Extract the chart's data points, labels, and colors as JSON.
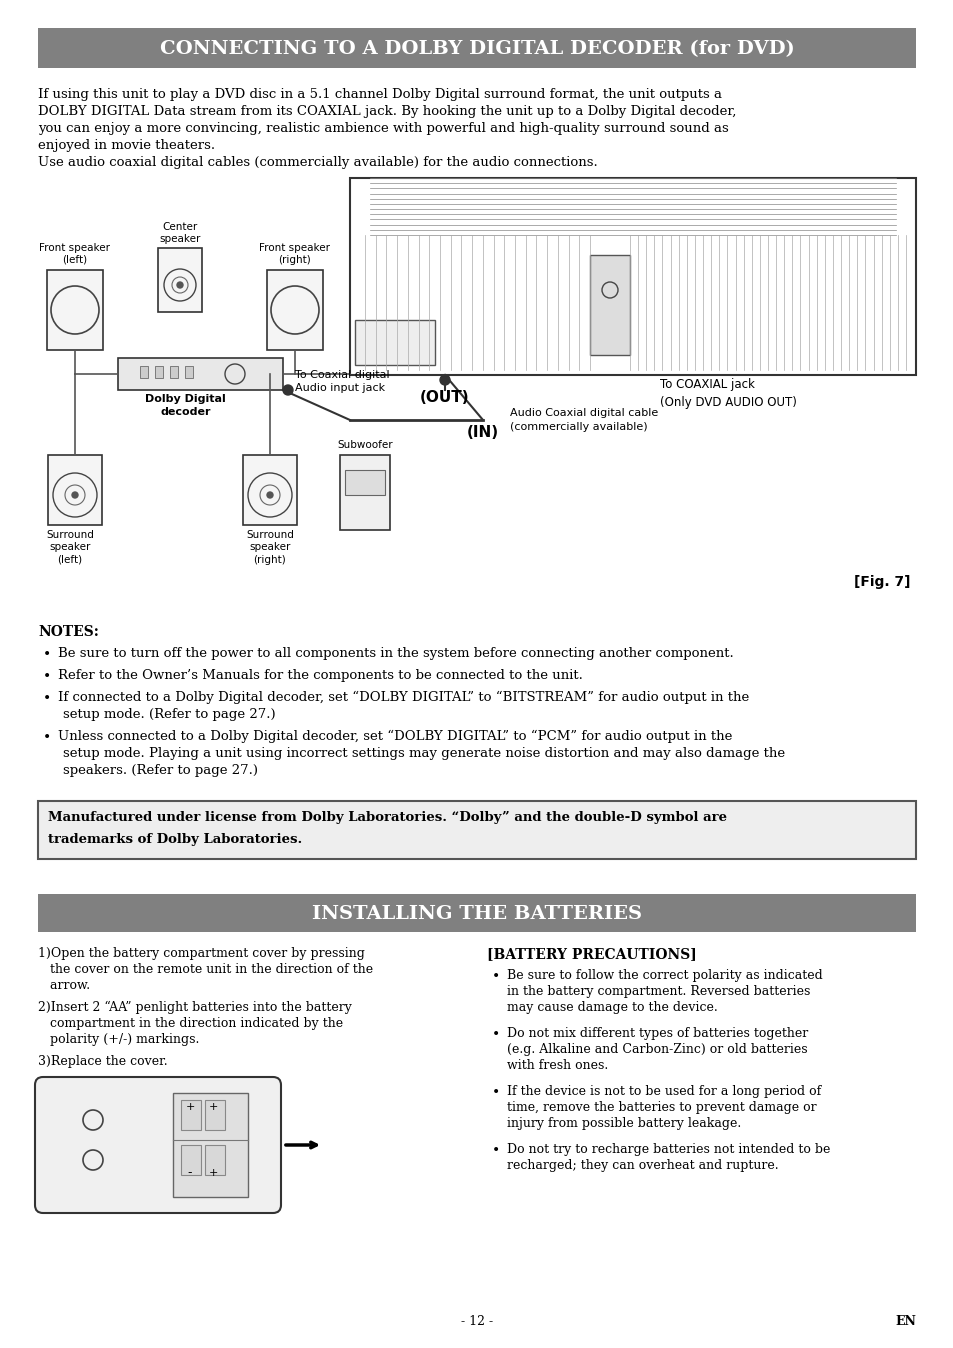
{
  "page_bg": "#ffffff",
  "header1_text": "CONNECTING TO A DOLBY DIGITAL DECODER (for DVD)",
  "header1_bg": "#808080",
  "header1_fg": "#ffffff",
  "body1_lines": [
    "If using this unit to play a DVD disc in a 5.1 channel Dolby Digital surround format, the unit outputs a",
    "DOLBY DIGITAL Data stream from its COAXIAL jack. By hooking the unit up to a Dolby Digital decoder,",
    "you can enjoy a more convincing, realistic ambience with powerful and high-quality surround sound as",
    "enjoyed in movie theaters.",
    "Use audio coaxial digital cables (commercially available) for the audio connections."
  ],
  "notes_title": "NOTES:",
  "notes_items": [
    "Be sure to turn off the power to all components in the system before connecting another component.",
    "Refer to the Owner’s Manuals for the components to be connected to the unit.",
    "If connected to a Dolby Digital decoder, set “DOLBY DIGITAL” to “BITSTREAM” for audio output in the\n   setup mode. (Refer to page 27.)",
    "Unless connected to a Dolby Digital decoder, set “DOLBY DIGITAL” to “PCM” for audio output in the\n   setup mode. Playing a unit using incorrect settings may generate noise distortion and may also damage the\n   speakers. (Refer to page 27.)"
  ],
  "dolby_box_line1": "Manufactured under license from Dolby Laboratories. “Dolby” and the double-D symbol are",
  "dolby_box_line2": "trademarks of Dolby Laboratories.",
  "header2_text": "INSTALLING THE BATTERIES",
  "header2_bg": "#808080",
  "header2_fg": "#ffffff",
  "battery_steps": [
    "1)Open the battery compartment cover by pressing\n   the cover on the remote unit in the direction of the\n   arrow.",
    "2)Insert 2 “AA” penlight batteries into the battery\n   compartment in the direction indicated by the\n   polarity (+/-) markings.",
    "3)Replace the cover."
  ],
  "battery_precautions_title": "[BATTERY PRECAUTIONS]",
  "battery_precautions_items": [
    "Be sure to follow the correct polarity as indicated\nin the battery compartment. Reversed batteries\nmay cause damage to the device.",
    "Do not mix different types of batteries together\n(e.g. Alkaline and Carbon-Zinc) or old batteries\nwith fresh ones.",
    "If the device is not to be used for a long period of\ntime, remove the batteries to prevent damage or\ninjury from possible battery leakage.",
    "Do not try to recharge batteries not intended to be\nrecharged; they can overheat and rupture."
  ],
  "footer_page": "- 12 -",
  "footer_en": "EN",
  "fig7_label": "[Fig. 7]",
  "diagram_labels": {
    "front_speaker_left": "Front speaker\n(left)",
    "center_speaker": "Center\nspeaker",
    "front_speaker_right": "Front speaker\n(right)",
    "dolby_decoder": "Dolby Digital\ndecoder",
    "coaxial_jack_in": "To Coaxial digital\nAudio input jack",
    "surround_left": "Surround\nspeaker\n(left)",
    "surround_right": "Surround\nspeaker\n(right)",
    "subwoofer": "Subwoofer",
    "out_label": "(OUT)",
    "in_label": "(IN)",
    "coaxial_jack_right": "To COAXIAL jack\n(Only DVD AUDIO OUT)",
    "audio_cable": "Audio Coaxial digital cable\n(commercially available)"
  }
}
